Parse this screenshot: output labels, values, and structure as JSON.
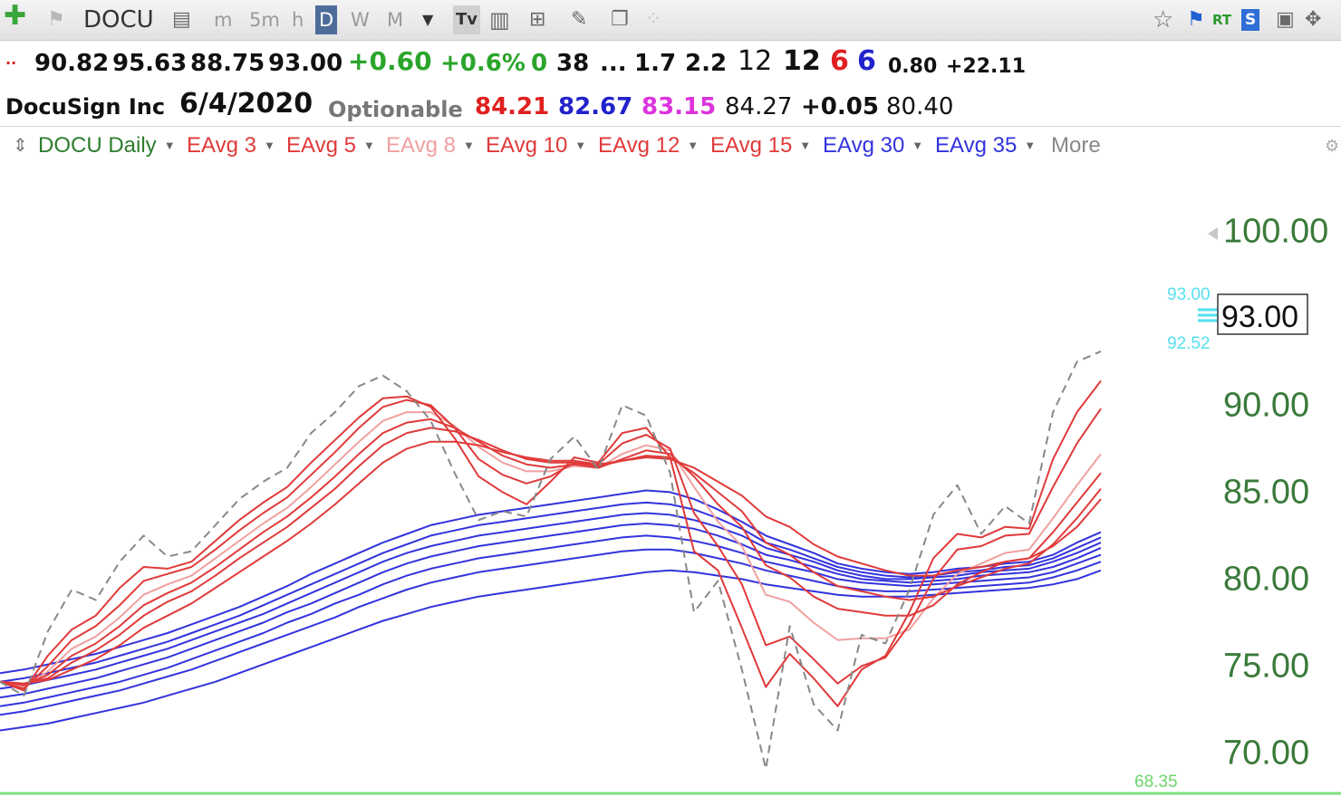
{
  "toolbar": {
    "ticker": "DOCU",
    "timeframes": [
      {
        "label": "m"
      },
      {
        "label": "5m"
      },
      {
        "label": "h"
      },
      {
        "label": "D",
        "active": true
      },
      {
        "label": "W"
      },
      {
        "label": "M"
      }
    ],
    "tv_label": "Tv",
    "rt_label": "RT",
    "s_label": "S"
  },
  "quote": {
    "open": "90.82",
    "high": "95.63",
    "low": "88.75",
    "close": "93.00",
    "change": "+0.60",
    "change_pct": "+0.6%",
    "v1": "0",
    "v2": "38",
    "ellipsis": "...",
    "v3": "1.7",
    "v4": "2.2",
    "v5": "12",
    "v6": "12",
    "v7": "6",
    "v8": "6",
    "v9": "0.80",
    "v10": "+22.11",
    "name": "DocuSign Inc",
    "date": "6/4/2020",
    "optionable": "Optionable",
    "p1": "84.21",
    "p2": "82.67",
    "p3": "83.15",
    "p4": "84.27",
    "p5": "+0.05",
    "p6": "80.40"
  },
  "legend": {
    "title": "DOCU Daily",
    "items": [
      {
        "label": "EAvg 3",
        "color": "#e03a3a"
      },
      {
        "label": "EAvg 5",
        "color": "#e03a3a"
      },
      {
        "label": "EAvg 8",
        "color": "#f0a0a0"
      },
      {
        "label": "EAvg 10",
        "color": "#e03a3a"
      },
      {
        "label": "EAvg 12",
        "color": "#e03a3a"
      },
      {
        "label": "EAvg 15",
        "color": "#e03a3a"
      },
      {
        "label": "EAvg 30",
        "color": "#3333dd"
      },
      {
        "label": "EAvg 35",
        "color": "#3333dd"
      }
    ],
    "more": "More"
  },
  "chart_data": {
    "type": "line",
    "ylim": [
      68.0,
      102.0
    ],
    "y_ticks": [
      "100.00",
      "95.00",
      "90.00",
      "85.00",
      "80.00",
      "75.00",
      "70.00"
    ],
    "colors": {
      "short": "#e03a3a",
      "short_light": "#f0a0a0",
      "long": "#3333dd",
      "price": "#888888",
      "axis_text": "#3a7a3a"
    },
    "current_price": {
      "value": 93.0,
      "label": "93.00"
    },
    "marker_high": {
      "value": 93.0,
      "label": "93.00"
    },
    "marker_low": {
      "value": 92.52,
      "label": "92.52"
    },
    "bottom_level": {
      "value": 68.35,
      "label": "68.35"
    },
    "series": [
      {
        "role": "price",
        "style": "dashed",
        "color": "#888888",
        "values": [
          74,
          73.2,
          76.9,
          79.3,
          78.7,
          80.9,
          82.4,
          81.2,
          81.5,
          83.0,
          84.5,
          85.5,
          86.3,
          88.3,
          89.5,
          91.0,
          91.6,
          90.7,
          89.0,
          86.0,
          83.3,
          83.8,
          83.5,
          86.8,
          88.1,
          86.2,
          89.9,
          89.3,
          86.0,
          78.0,
          79.8,
          74.7,
          69.0,
          77.2,
          72.7,
          71.2,
          76.7,
          76.2,
          79.3,
          83.6,
          85.3,
          82.5,
          84.1,
          83.1,
          89.5,
          92.4,
          93.0
        ]
      },
      {
        "role": "short",
        "values": [
          74.0,
          73.5,
          75.5,
          77.0,
          77.8,
          79.4,
          80.6,
          80.5,
          80.9,
          82.1,
          83.3,
          84.3,
          85.2,
          86.6,
          87.9,
          89.2,
          90.3,
          90.4,
          89.8,
          88.0,
          85.8,
          84.9,
          84.2,
          85.5,
          86.9,
          86.6,
          88.3,
          88.6,
          86.9,
          81.5,
          80.4,
          77.1,
          73.7,
          75.6,
          74.2,
          72.6,
          74.7,
          75.5,
          78.0,
          81.1,
          82.5,
          82.3,
          82.9,
          82.8,
          86.8,
          89.5,
          91.3
        ]
      },
      {
        "role": "short",
        "values": [
          74.0,
          73.6,
          74.9,
          76.4,
          77.2,
          78.4,
          79.8,
          80.2,
          80.6,
          81.6,
          82.7,
          83.7,
          84.6,
          85.9,
          87.2,
          88.6,
          89.8,
          90.2,
          89.9,
          88.6,
          86.8,
          85.9,
          85.4,
          85.8,
          86.6,
          86.5,
          87.7,
          88.2,
          87.4,
          83.7,
          81.8,
          79.6,
          76.1,
          76.6,
          75.3,
          73.9,
          74.9,
          75.4,
          77.3,
          79.9,
          81.6,
          81.8,
          82.4,
          82.5,
          85.2,
          87.7,
          89.7
        ]
      },
      {
        "role": "short_light",
        "values": [
          74.0,
          73.7,
          74.6,
          75.9,
          76.6,
          77.7,
          79.0,
          79.6,
          80.1,
          81.1,
          82.1,
          83.1,
          84.0,
          85.2,
          86.5,
          87.8,
          89.0,
          89.5,
          89.5,
          88.7,
          87.5,
          86.6,
          86.1,
          86.1,
          86.4,
          86.3,
          87.1,
          87.6,
          87.3,
          85.2,
          83.2,
          81.8,
          79.0,
          78.6,
          77.4,
          76.4,
          76.5,
          76.5,
          77.0,
          78.8,
          80.2,
          80.8,
          81.4,
          81.6,
          83.4,
          85.3,
          87.1
        ]
      },
      {
        "role": "short",
        "values": [
          74.0,
          73.8,
          74.4,
          75.5,
          76.2,
          77.2,
          78.4,
          79.1,
          79.7,
          80.6,
          81.6,
          82.6,
          83.5,
          84.6,
          85.8,
          87.1,
          88.3,
          88.9,
          89.1,
          88.6,
          87.8,
          87.0,
          86.5,
          86.3,
          86.5,
          86.3,
          86.8,
          87.3,
          87.1,
          85.8,
          84.2,
          82.9,
          80.7,
          80.0,
          78.9,
          78.2,
          78.0,
          77.8,
          77.8,
          78.4,
          79.6,
          80.3,
          80.9,
          81.1,
          82.6,
          84.3,
          86.0
        ]
      },
      {
        "role": "short",
        "values": [
          74.0,
          73.9,
          74.2,
          75.1,
          75.8,
          76.7,
          77.8,
          78.6,
          79.2,
          80.1,
          81.1,
          82.0,
          82.9,
          84.0,
          85.1,
          86.4,
          87.6,
          88.3,
          88.6,
          88.4,
          87.9,
          87.3,
          86.8,
          86.6,
          86.6,
          86.4,
          86.7,
          87.0,
          86.9,
          86.0,
          84.9,
          83.8,
          82.0,
          81.3,
          80.3,
          79.5,
          79.2,
          78.9,
          78.7,
          78.9,
          79.5,
          80.0,
          80.5,
          80.8,
          81.9,
          83.4,
          85.1
        ]
      },
      {
        "role": "short",
        "values": [
          74.0,
          73.9,
          74.1,
          74.7,
          75.3,
          76.1,
          77.1,
          77.8,
          78.5,
          79.4,
          80.3,
          81.2,
          82.1,
          83.1,
          84.2,
          85.4,
          86.6,
          87.4,
          87.8,
          87.8,
          87.6,
          87.2,
          86.9,
          86.7,
          86.7,
          86.5,
          86.7,
          86.9,
          86.8,
          86.3,
          85.5,
          84.7,
          83.5,
          82.9,
          81.9,
          81.2,
          80.8,
          80.4,
          80.1,
          80.1,
          80.4,
          80.6,
          80.9,
          81.1,
          81.8,
          82.9,
          84.5
        ]
      },
      {
        "role": "long",
        "values": [
          74.5,
          74.7,
          75.0,
          75.3,
          75.6,
          76.0,
          76.4,
          76.8,
          77.3,
          77.8,
          78.3,
          78.9,
          79.5,
          80.2,
          80.8,
          81.4,
          82.0,
          82.5,
          83.0,
          83.3,
          83.6,
          83.8,
          84.0,
          84.2,
          84.4,
          84.6,
          84.8,
          85.0,
          84.9,
          84.5,
          83.9,
          83.2,
          82.4,
          81.9,
          81.4,
          80.8,
          80.5,
          80.3,
          80.2,
          80.3,
          80.5,
          80.6,
          80.8,
          80.9,
          81.3,
          82.0,
          82.6
        ]
      },
      {
        "role": "long",
        "values": [
          74.0,
          74.2,
          74.5,
          74.8,
          75.1,
          75.5,
          75.9,
          76.3,
          76.8,
          77.3,
          77.8,
          78.4,
          79.0,
          79.6,
          80.2,
          80.8,
          81.4,
          81.9,
          82.4,
          82.7,
          83.0,
          83.2,
          83.4,
          83.6,
          83.8,
          84.0,
          84.2,
          84.3,
          84.2,
          83.9,
          83.4,
          82.8,
          82.0,
          81.6,
          81.1,
          80.6,
          80.3,
          80.1,
          80.0,
          80.1,
          80.3,
          80.4,
          80.6,
          80.7,
          81.1,
          81.7,
          82.3
        ]
      },
      {
        "role": "long",
        "values": [
          73.6,
          73.8,
          74.1,
          74.4,
          74.7,
          75.1,
          75.5,
          75.9,
          76.4,
          76.9,
          77.4,
          77.9,
          78.5,
          79.1,
          79.7,
          80.3,
          80.9,
          81.4,
          81.8,
          82.1,
          82.4,
          82.6,
          82.8,
          83.0,
          83.2,
          83.4,
          83.6,
          83.7,
          83.6,
          83.3,
          82.9,
          82.4,
          81.7,
          81.3,
          80.9,
          80.4,
          80.1,
          79.9,
          79.9,
          80.0,
          80.1,
          80.3,
          80.4,
          80.5,
          80.9,
          81.4,
          82.0
        ]
      },
      {
        "role": "long",
        "values": [
          73.1,
          73.3,
          73.6,
          73.9,
          74.2,
          74.6,
          75.0,
          75.4,
          75.9,
          76.4,
          76.9,
          77.4,
          78.0,
          78.5,
          79.1,
          79.7,
          80.3,
          80.8,
          81.2,
          81.5,
          81.8,
          82.0,
          82.2,
          82.4,
          82.6,
          82.8,
          83.0,
          83.1,
          83.0,
          82.8,
          82.4,
          81.9,
          81.3,
          81.0,
          80.6,
          80.2,
          79.9,
          79.8,
          79.7,
          79.8,
          79.9,
          80.1,
          80.2,
          80.3,
          80.6,
          81.1,
          81.7
        ]
      },
      {
        "role": "long",
        "values": [
          72.6,
          72.8,
          73.1,
          73.4,
          73.7,
          74.0,
          74.4,
          74.8,
          75.3,
          75.8,
          76.3,
          76.8,
          77.4,
          77.9,
          78.5,
          79.0,
          79.6,
          80.1,
          80.5,
          80.8,
          81.1,
          81.3,
          81.5,
          81.7,
          81.9,
          82.1,
          82.3,
          82.4,
          82.3,
          82.1,
          81.8,
          81.4,
          80.9,
          80.6,
          80.3,
          79.9,
          79.7,
          79.6,
          79.5,
          79.6,
          79.7,
          79.8,
          79.9,
          80.0,
          80.3,
          80.8,
          81.3
        ]
      },
      {
        "role": "long",
        "values": [
          72.1,
          72.3,
          72.6,
          72.9,
          73.2,
          73.5,
          73.9,
          74.3,
          74.7,
          75.2,
          75.7,
          76.2,
          76.7,
          77.2,
          77.7,
          78.3,
          78.8,
          79.3,
          79.7,
          80.0,
          80.3,
          80.5,
          80.7,
          80.9,
          81.1,
          81.3,
          81.5,
          81.6,
          81.6,
          81.4,
          81.1,
          80.8,
          80.4,
          80.1,
          79.8,
          79.5,
          79.3,
          79.2,
          79.2,
          79.3,
          79.4,
          79.5,
          79.6,
          79.7,
          80.0,
          80.4,
          80.9
        ]
      },
      {
        "role": "long",
        "values": [
          71.2,
          71.4,
          71.6,
          71.9,
          72.2,
          72.5,
          72.8,
          73.2,
          73.6,
          74.0,
          74.5,
          75.0,
          75.5,
          76.0,
          76.5,
          77.0,
          77.5,
          77.9,
          78.3,
          78.6,
          78.9,
          79.1,
          79.3,
          79.5,
          79.7,
          79.9,
          80.1,
          80.3,
          80.4,
          80.3,
          80.1,
          79.9,
          79.6,
          79.4,
          79.2,
          79.0,
          78.9,
          78.9,
          78.9,
          79.0,
          79.1,
          79.2,
          79.3,
          79.4,
          79.6,
          79.9,
          80.4
        ]
      }
    ]
  }
}
